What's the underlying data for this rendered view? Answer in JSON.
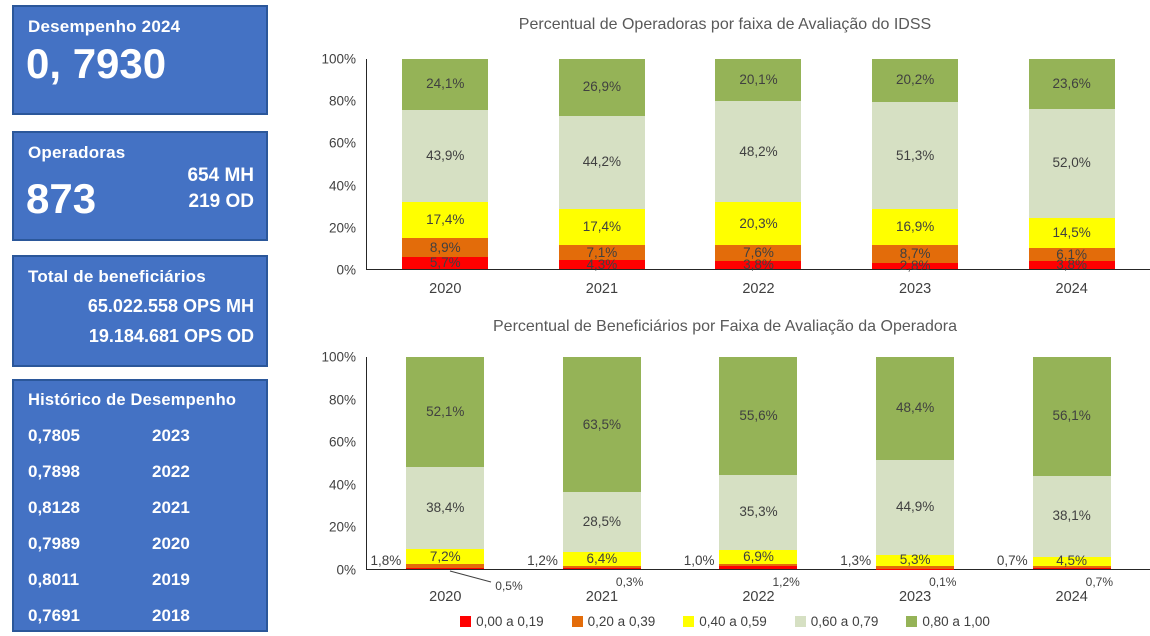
{
  "colors": {
    "panel_fill": "#4472C4",
    "panel_border": "#2B579A",
    "chart_title": "#595959",
    "chart_text": "#404040",
    "axis": "#262626"
  },
  "sidebar": {
    "performance": {
      "title": "Desempenho 2024",
      "value": "0, 7930"
    },
    "operators": {
      "title": "Operadoras",
      "value": "873",
      "details": [
        "654 MH",
        "219 OD"
      ]
    },
    "beneficiaries": {
      "title": "Total de beneficiários",
      "lines": [
        "65.022.558 OPS MH",
        "19.184.681 OPS OD"
      ]
    },
    "history": {
      "title": "Histórico de Desempenho",
      "rows": [
        {
          "value": "0,7805",
          "year": "2023"
        },
        {
          "value": "0,7898",
          "year": "2022"
        },
        {
          "value": "0,8128",
          "year": "2021"
        },
        {
          "value": "0,7989",
          "year": "2020"
        },
        {
          "value": "0,8011",
          "year": "2019"
        },
        {
          "value": "0,7691",
          "year": "2018"
        }
      ]
    }
  },
  "chart_data": [
    {
      "type": "bar",
      "stacked": true,
      "title": "Percentual de Operadoras por faixa de Avaliação do IDSS",
      "categories": [
        "2020",
        "2021",
        "2022",
        "2023",
        "2024"
      ],
      "ylim": [
        0,
        100
      ],
      "ytick_labels": [
        "0%",
        "20%",
        "40%",
        "60%",
        "80%",
        "100%"
      ],
      "grid": false,
      "legend_position": "none",
      "series": [
        {
          "name": "0,00 a 0,19",
          "color": "#FF0000",
          "label_mode": "inside",
          "values": [
            5.7,
            4.3,
            3.8,
            2.8,
            3.8
          ],
          "labels": [
            "5,7%",
            "4,3%",
            "3,8%",
            "2,8%",
            "3,8%"
          ]
        },
        {
          "name": "0,20 a 0,39",
          "color": "#E36C0A",
          "label_mode": "inside",
          "values": [
            8.9,
            7.1,
            7.6,
            8.7,
            6.1
          ],
          "labels": [
            "8,9%",
            "7,1%",
            "7,6%",
            "8,7%",
            "6,1%"
          ]
        },
        {
          "name": "0,40 a 0,59",
          "color": "#FFFF00",
          "label_mode": "inside",
          "values": [
            17.4,
            17.4,
            20.3,
            16.9,
            14.5
          ],
          "labels": [
            "17,4%",
            "17,4%",
            "20,3%",
            "16,9%",
            "14,5%"
          ]
        },
        {
          "name": "0,60 a 0,79",
          "color": "#D6E0C3",
          "label_mode": "inside",
          "values": [
            43.9,
            44.2,
            48.2,
            51.3,
            52.0
          ],
          "labels": [
            "43,9%",
            "44,2%",
            "48,2%",
            "51,3%",
            "52,0%"
          ]
        },
        {
          "name": "0,80 a 1,00",
          "color": "#95B357",
          "label_mode": "inside",
          "values": [
            24.1,
            26.9,
            20.1,
            20.2,
            23.6
          ],
          "labels": [
            "24,1%",
            "26,9%",
            "20,1%",
            "20,2%",
            "23,6%"
          ]
        }
      ]
    },
    {
      "type": "bar",
      "stacked": true,
      "title": "Percentual de Beneficiários por Faixa de Avaliação da Operadora",
      "categories": [
        "2020",
        "2021",
        "2022",
        "2023",
        "2024"
      ],
      "ylim": [
        0,
        100
      ],
      "ytick_labels": [
        "0%",
        "20%",
        "40%",
        "60%",
        "80%",
        "100%"
      ],
      "grid": false,
      "legend_position": "bottom",
      "series": [
        {
          "name": "0,00 a 0,19",
          "color": "#FF0000",
          "label_mode": "below",
          "leader": [
            true,
            false,
            false,
            false,
            false
          ],
          "values": [
            0.5,
            0.3,
            1.2,
            0.1,
            0.7
          ],
          "labels": [
            "0,5%",
            "0,3%",
            "1,2%",
            "0,1%",
            "0,7%"
          ]
        },
        {
          "name": "0,20 a 0,39",
          "color": "#E36C0A",
          "label_mode": "left",
          "values": [
            1.8,
            1.2,
            1.0,
            1.3,
            0.7
          ],
          "labels": [
            "1,8%",
            "1,2%",
            "1,0%",
            "1,3%",
            "0,7%"
          ]
        },
        {
          "name": "0,40 a 0,59",
          "color": "#FFFF00",
          "label_mode": "inside",
          "values": [
            7.2,
            6.4,
            6.9,
            5.3,
            4.5
          ],
          "labels": [
            "7,2%",
            "6,4%",
            "6,9%",
            "5,3%",
            "4,5%"
          ]
        },
        {
          "name": "0,60 a 0,79",
          "color": "#D6E0C3",
          "label_mode": "inside",
          "values": [
            38.4,
            28.5,
            35.3,
            44.9,
            38.1
          ],
          "labels": [
            "38,4%",
            "28,5%",
            "35,3%",
            "44,9%",
            "38,1%"
          ]
        },
        {
          "name": "0,80 a 1,00",
          "color": "#95B357",
          "label_mode": "inside",
          "values": [
            52.1,
            63.5,
            55.6,
            48.4,
            56.1
          ],
          "labels": [
            "52,1%",
            "63,5%",
            "55,6%",
            "48,4%",
            "56,1%"
          ]
        }
      ]
    }
  ]
}
